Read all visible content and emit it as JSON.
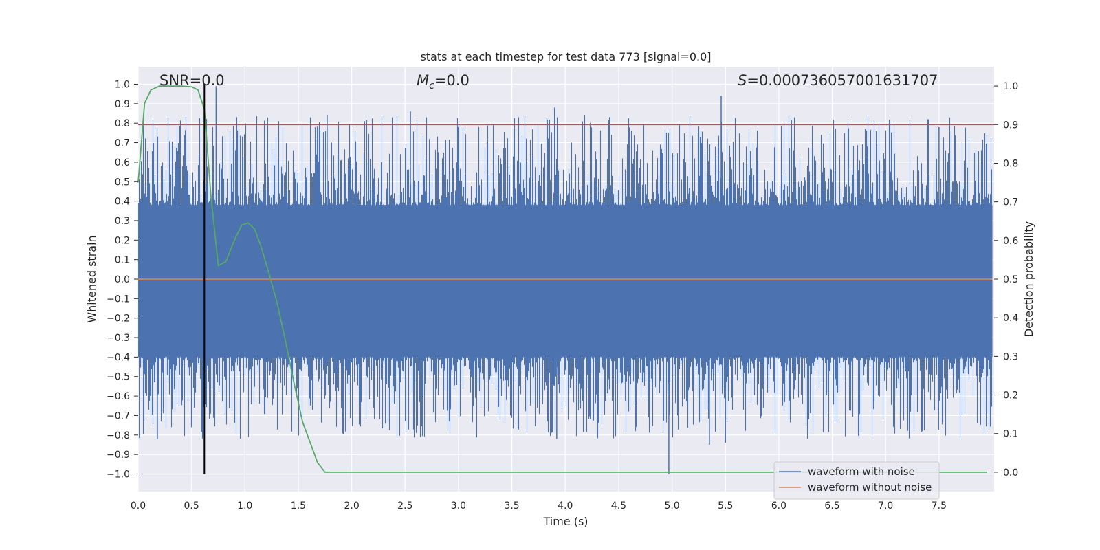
{
  "chart_data": {
    "type": "line",
    "title": "stats at each timestep for test data 773 [signal=0.0]",
    "xlabel": "Time (s)",
    "ylabel": "Whitened strain",
    "y2label": "Detection probability",
    "xlim": [
      0.0,
      8.0
    ],
    "ylim": [
      -1.09,
      1.09
    ],
    "y2lim": [
      -0.05,
      1.05
    ],
    "xticks": [
      "0.0",
      "0.5",
      "1.0",
      "1.5",
      "2.0",
      "2.5",
      "3.0",
      "3.5",
      "4.0",
      "4.5",
      "5.0",
      "5.5",
      "6.0",
      "6.5",
      "7.0",
      "7.5"
    ],
    "yticks": [
      "1.0",
      "0.9",
      "0.8",
      "0.7",
      "0.6",
      "0.5",
      "0.4",
      "0.3",
      "0.2",
      "0.1",
      "0.0",
      "−0.1",
      "−0.2",
      "−0.3",
      "−0.4",
      "−0.5",
      "−0.6",
      "−0.7",
      "−0.8",
      "−0.9",
      "−1.0"
    ],
    "y2ticks": [
      "1.0",
      "0.9",
      "0.8",
      "0.7",
      "0.6",
      "0.5",
      "0.4",
      "0.3",
      "0.2",
      "0.1",
      "0.0"
    ],
    "annotations": {
      "snr": "SNR=0.0",
      "mc_symbol": "M",
      "mc_subscript": "c",
      "mc_value": "=0.0",
      "s_symbol": "S",
      "s_value": "=0.000736057001631707"
    },
    "legend": {
      "position": "lower right",
      "entries": [
        "waveform with noise",
        "waveform without noise"
      ]
    },
    "series": [
      {
        "name": "waveform with noise",
        "color": "#4c72b0",
        "envelope_upper": 0.38,
        "envelope_lower": -0.4,
        "max": 0.99,
        "min": -1.0
      },
      {
        "name": "waveform without noise",
        "color": "#dd8452",
        "values": "0.0 constant"
      },
      {
        "name": "detection probability",
        "color": "#55a868",
        "axis": "right",
        "x": [
          0.0,
          0.06,
          0.12,
          0.2,
          0.3,
          0.4,
          0.5,
          0.56,
          0.62,
          0.68,
          0.75,
          0.82,
          0.9,
          0.97,
          1.03,
          1.09,
          1.15,
          1.22,
          1.3,
          1.38,
          1.46,
          1.54,
          1.62,
          1.68,
          1.75,
          2.0,
          3.0,
          4.0,
          5.0,
          6.0,
          7.0,
          7.95
        ],
        "values": [
          0.75,
          0.955,
          0.99,
          1.0,
          1.0,
          1.0,
          0.998,
          0.99,
          0.94,
          0.72,
          0.535,
          0.545,
          0.6,
          0.64,
          0.645,
          0.63,
          0.585,
          0.52,
          0.44,
          0.34,
          0.23,
          0.13,
          0.07,
          0.025,
          0.0,
          0.0,
          0.0,
          0.0,
          0.0,
          0.0,
          0.0,
          0.0
        ]
      },
      {
        "name": "threshold",
        "color": "#c44e52",
        "axis": "right",
        "value": 0.9
      },
      {
        "name": "marker",
        "color": "#000000",
        "x": 0.62,
        "y_range": [
          -1.0,
          1.0
        ]
      }
    ]
  }
}
